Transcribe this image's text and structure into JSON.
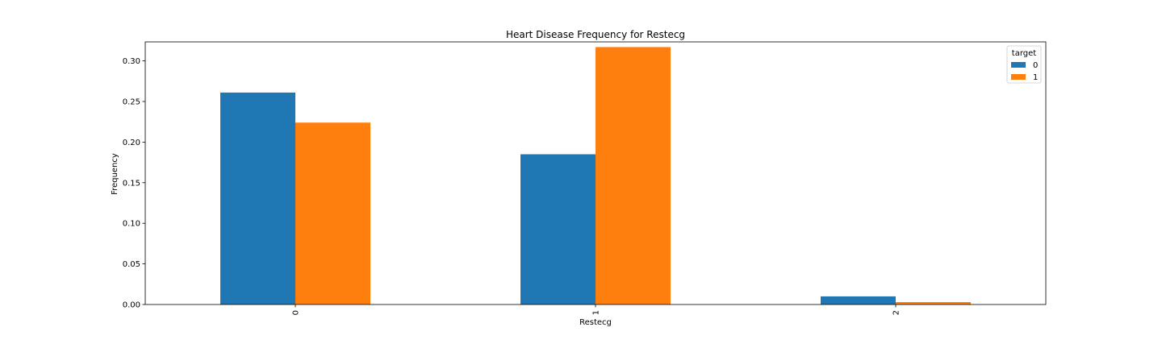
{
  "chart_data": {
    "type": "bar",
    "title": "Heart Disease Frequency for Restecg",
    "xlabel": "Restecg",
    "ylabel": "Frequency",
    "categories": [
      "0",
      "1",
      "2"
    ],
    "series": [
      {
        "name": "0",
        "color": "#1f77b4",
        "values": [
          0.261,
          0.185,
          0.01
        ]
      },
      {
        "name": "1",
        "color": "#ff7f0e",
        "values": [
          0.224,
          0.317,
          0.003
        ]
      }
    ],
    "ylim": [
      0,
      0.3234
    ],
    "yticks": [
      0.0,
      0.05,
      0.1,
      0.15,
      0.2,
      0.25,
      0.3
    ],
    "ytick_labels": [
      "0.00",
      "0.05",
      "0.10",
      "0.15",
      "0.20",
      "0.25",
      "0.30"
    ],
    "grid": false,
    "legend": {
      "title": "target",
      "placement": "top-right"
    }
  }
}
